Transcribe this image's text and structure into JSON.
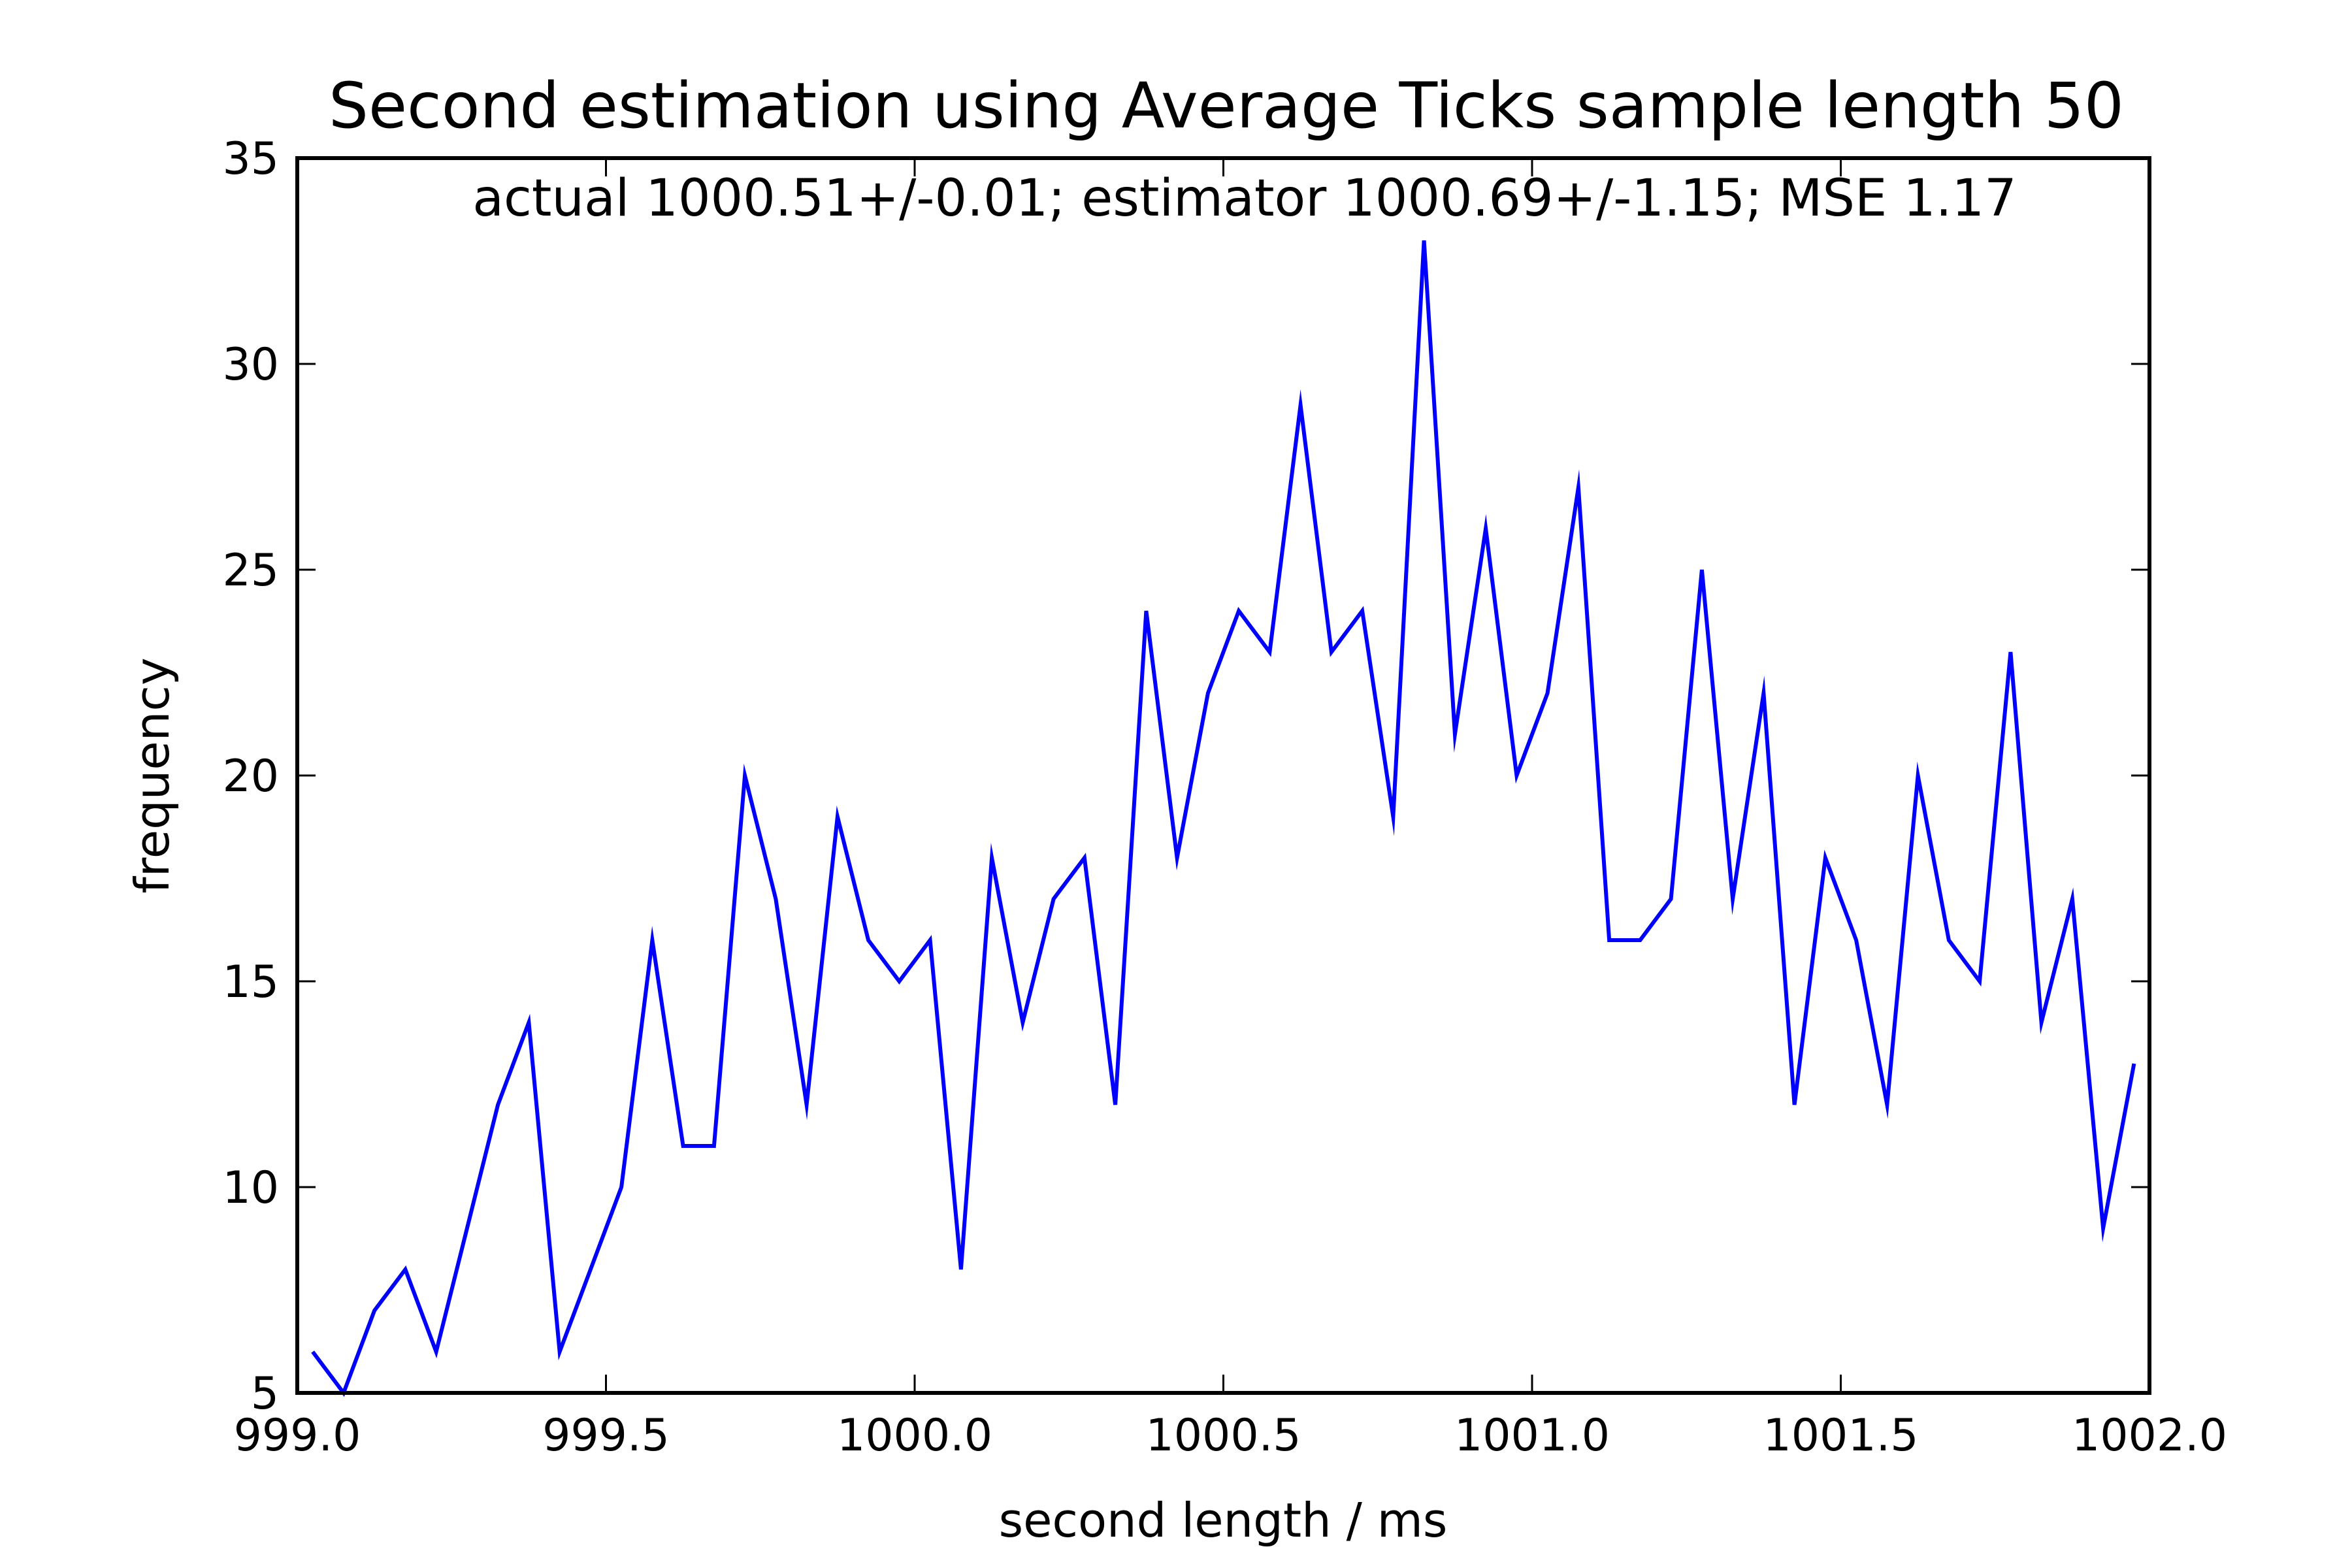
{
  "chart_data": {
    "type": "line",
    "title": "Second estimation using Average Ticks sample length 50",
    "annotation": "actual 1000.51+/-0.01;  estimator 1000.69+/-1.15;  MSE 1.17",
    "xlabel": "second length / ms",
    "ylabel": "frequency",
    "xlim": [
      999.0,
      1002.0
    ],
    "ylim": [
      5,
      35
    ],
    "xticks": [
      999.0,
      999.5,
      1000.0,
      1000.5,
      1001.0,
      1001.5,
      1002.0
    ],
    "xtick_labels": [
      "999.0",
      "999.5",
      "1000.0",
      "1000.5",
      "1001.0",
      "1001.5",
      "1002.0"
    ],
    "yticks": [
      5,
      10,
      15,
      20,
      25,
      30,
      35
    ],
    "ytick_labels": [
      "5",
      "10",
      "15",
      "20",
      "25",
      "30",
      "35"
    ],
    "grid": false,
    "series_color": "#0000ff",
    "series": [
      {
        "x": [
          999.025,
          999.075,
          999.125,
          999.175,
          999.225,
          999.275,
          999.325,
          999.375,
          999.425,
          999.475,
          999.525,
          999.575,
          999.625,
          999.675,
          999.725,
          999.775,
          999.825,
          999.875,
          999.925,
          999.975,
          1000.025,
          1000.075,
          1000.125,
          1000.175,
          1000.225,
          1000.275,
          1000.325,
          1000.375,
          1000.425,
          1000.475,
          1000.525,
          1000.575,
          1000.625,
          1000.675,
          1000.725,
          1000.775,
          1000.825,
          1000.875,
          1000.925,
          1000.975,
          1001.025,
          1001.075,
          1001.125,
          1001.175,
          1001.225,
          1001.275,
          1001.325,
          1001.375,
          1001.425,
          1001.475,
          1001.525,
          1001.575,
          1001.625,
          1001.675,
          1001.725,
          1001.775,
          1001.825,
          1001.875,
          1001.925,
          1001.975
        ],
        "values": [
          6,
          5,
          7,
          8,
          6,
          9,
          12,
          14,
          6,
          8,
          10,
          16,
          11,
          11,
          20,
          17,
          12,
          19,
          16,
          15,
          16,
          8,
          18,
          14,
          17,
          18,
          12,
          24,
          18,
          22,
          24,
          23,
          29,
          23,
          24,
          19,
          33,
          21,
          26,
          20,
          22,
          27,
          16,
          16,
          17,
          25,
          17,
          22,
          12,
          18,
          16,
          12,
          20,
          16,
          15,
          23,
          14,
          17,
          9,
          13
        ]
      }
    ]
  }
}
